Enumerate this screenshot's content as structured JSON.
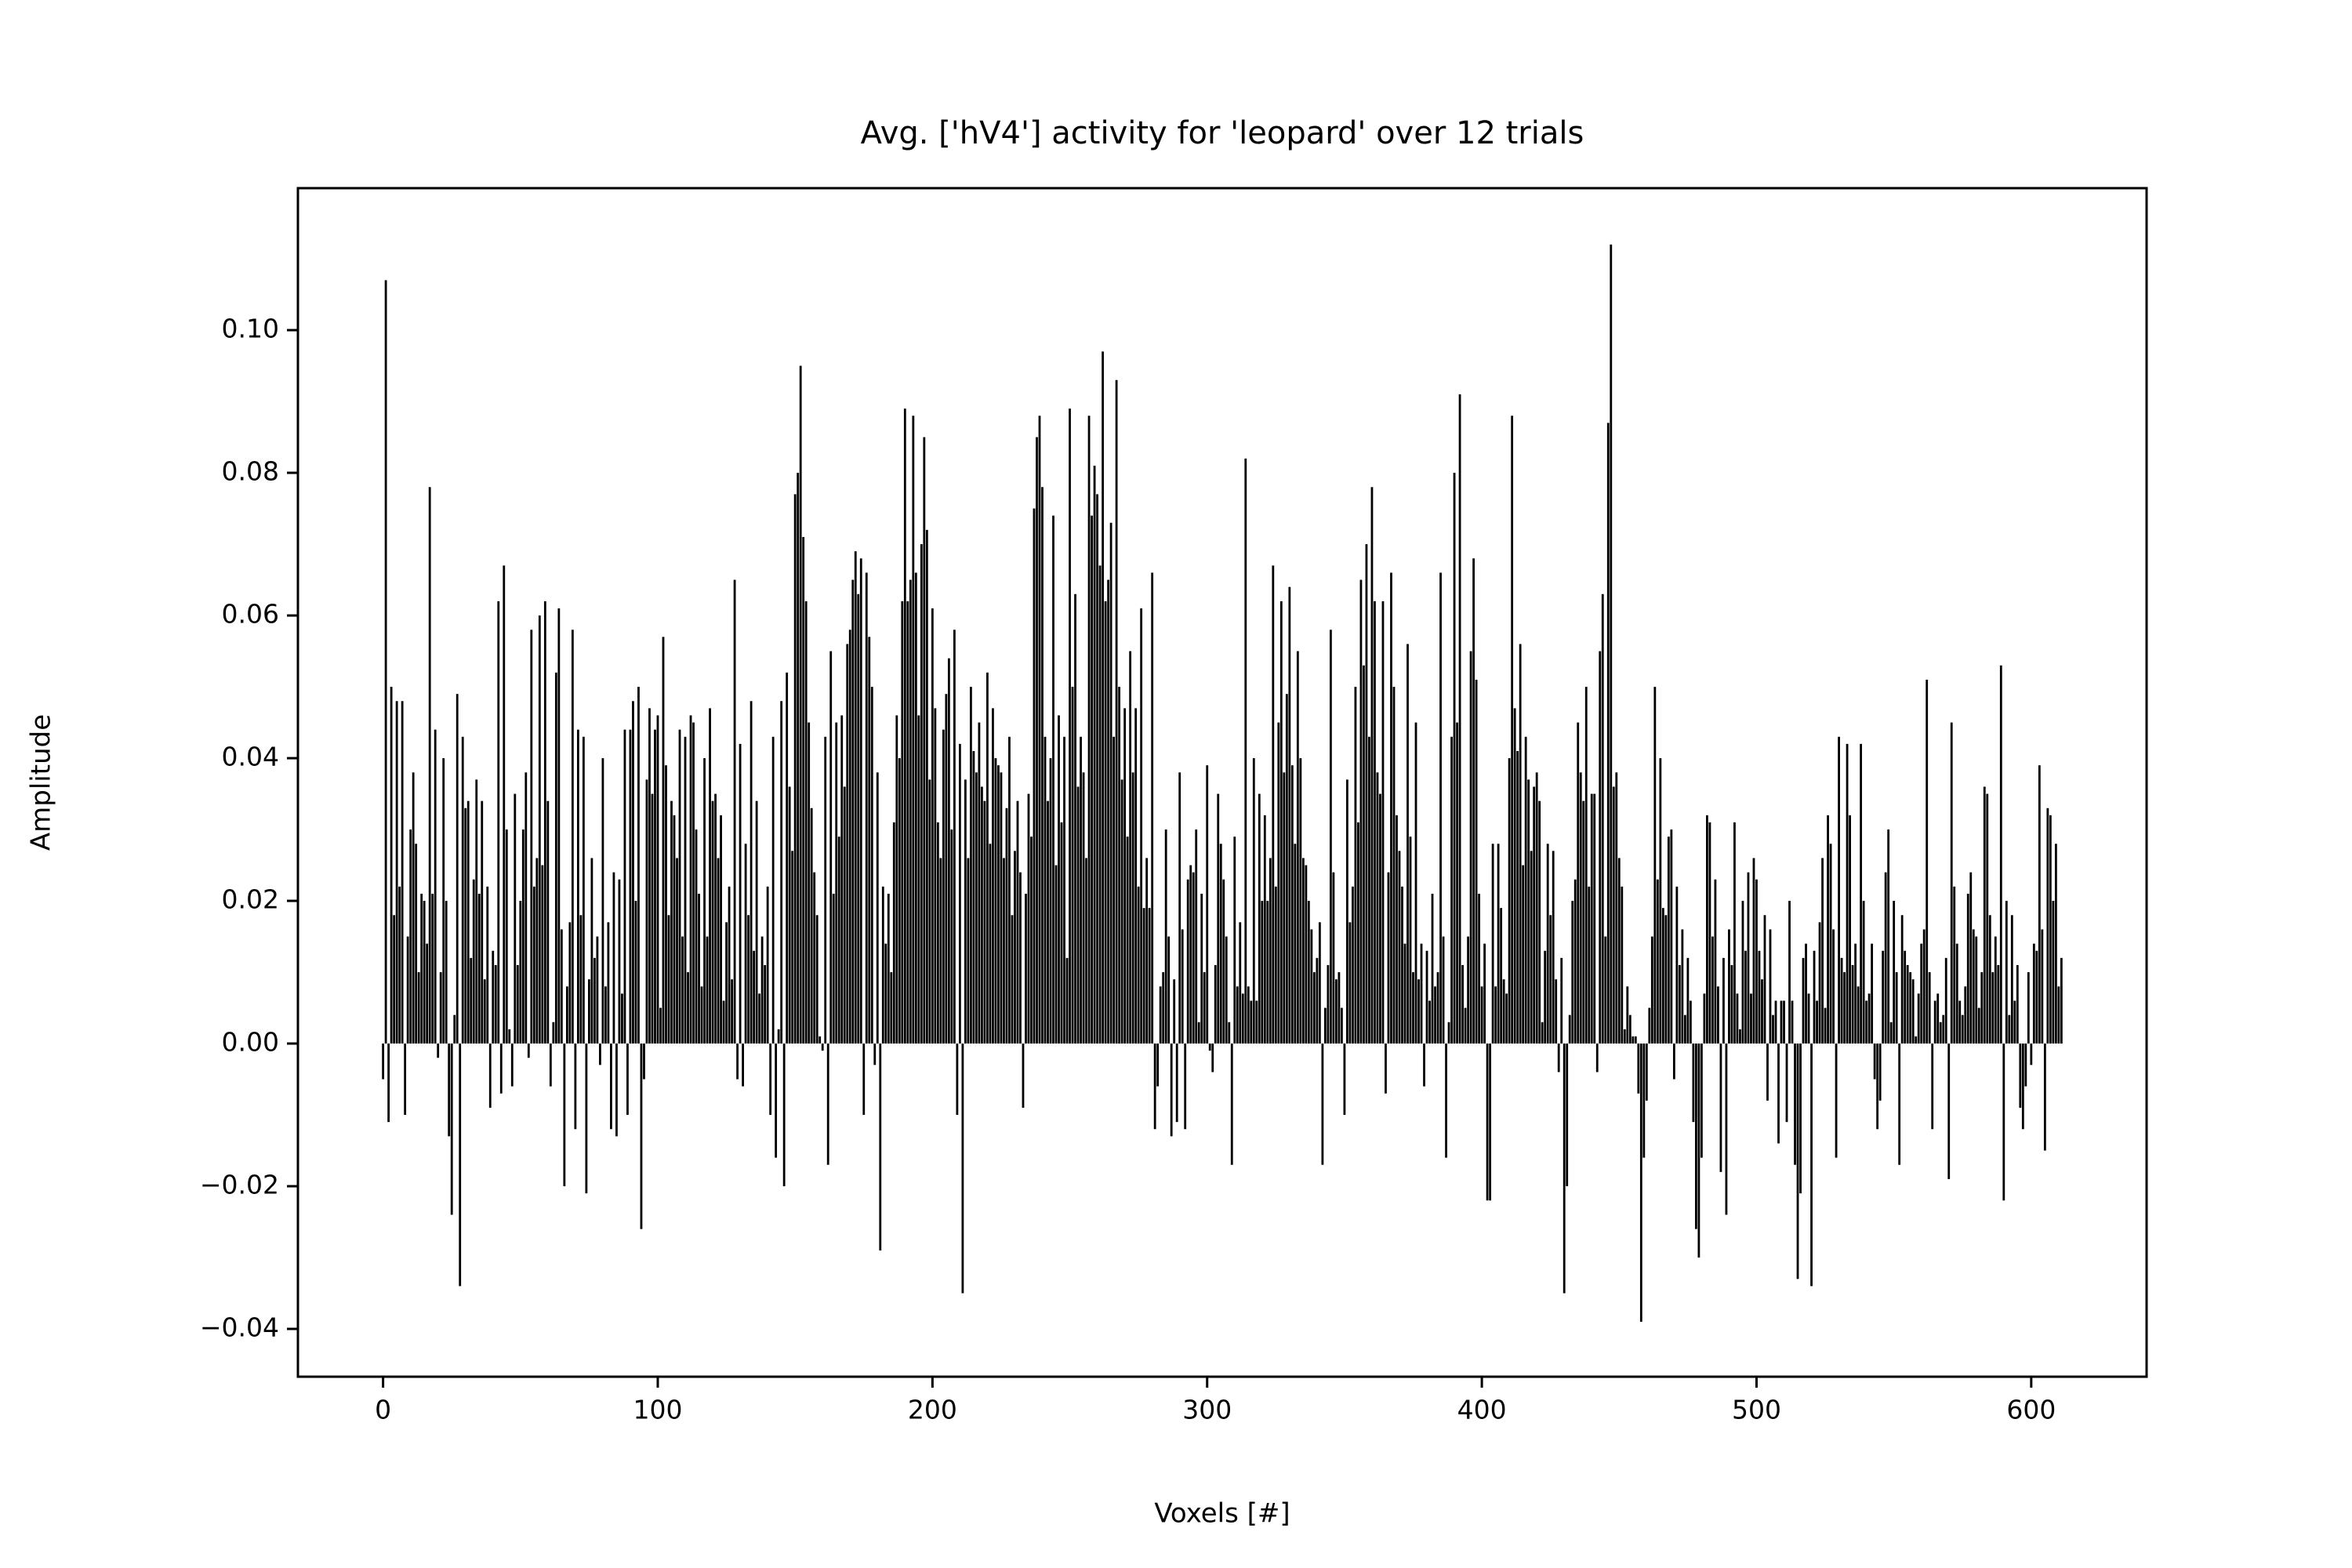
{
  "chart_data": {
    "type": "bar",
    "title": "Avg. ['hV4'] activity for 'leopard' over 12 trials",
    "xlabel": "Voxels [#]",
    "ylabel": "Amplitude",
    "color": "#000000",
    "bar_width": 0.8,
    "xlim": [
      -31,
      642
    ],
    "ylim": [
      -0.0467,
      0.1199
    ],
    "xticks": [
      0,
      100,
      200,
      300,
      400,
      500,
      600
    ],
    "yticks": [
      {
        "value": -0.04,
        "label": "−0.04"
      },
      {
        "value": -0.02,
        "label": "−0.02"
      },
      {
        "value": 0,
        "label": "0.00"
      },
      {
        "value": 0.02,
        "label": "0.02"
      },
      {
        "value": 0.04,
        "label": "0.04"
      },
      {
        "value": 0.06,
        "label": "0.06"
      },
      {
        "value": 0.08,
        "label": "0.08"
      },
      {
        "value": 0.1,
        "label": "0.10"
      }
    ],
    "grid": false,
    "x": [
      0,
      1,
      2,
      3,
      4,
      5,
      6,
      7,
      8,
      9,
      10,
      11,
      12,
      13,
      14,
      15,
      16,
      17,
      18,
      19,
      20,
      21,
      22,
      23,
      24,
      25,
      26,
      27,
      28,
      29,
      30,
      31,
      32,
      33,
      34,
      35,
      36,
      37,
      38,
      39,
      40,
      41,
      42,
      43,
      44,
      45,
      46,
      47,
      48,
      49,
      50,
      51,
      52,
      53,
      54,
      55,
      56,
      57,
      58,
      59,
      60,
      61,
      62,
      63,
      64,
      65,
      66,
      67,
      68,
      69,
      70,
      71,
      72,
      73,
      74,
      75,
      76,
      77,
      78,
      79,
      80,
      81,
      82,
      83,
      84,
      85,
      86,
      87,
      88,
      89,
      90,
      91,
      92,
      93,
      94,
      95,
      96,
      97,
      98,
      99,
      100,
      101,
      102,
      103,
      104,
      105,
      106,
      107,
      108,
      109,
      110,
      111,
      112,
      113,
      114,
      115,
      116,
      117,
      118,
      119,
      120,
      121,
      122,
      123,
      124,
      125,
      126,
      127,
      128,
      129,
      130,
      131,
      132,
      133,
      134,
      135,
      136,
      137,
      138,
      139,
      140,
      141,
      142,
      143,
      144,
      145,
      146,
      147,
      148,
      149,
      150,
      151,
      152,
      153,
      154,
      155,
      156,
      157,
      158,
      159,
      160,
      161,
      162,
      163,
      164,
      165,
      166,
      167,
      168,
      169,
      170,
      171,
      172,
      173,
      174,
      175,
      176,
      177,
      178,
      179,
      180,
      181,
      182,
      183,
      184,
      185,
      186,
      187,
      188,
      189,
      190,
      191,
      192,
      193,
      194,
      195,
      196,
      197,
      198,
      199,
      200,
      201,
      202,
      203,
      204,
      205,
      206,
      207,
      208,
      209,
      210,
      211,
      212,
      213,
      214,
      215,
      216,
      217,
      218,
      219,
      220,
      221,
      222,
      223,
      224,
      225,
      226,
      227,
      228,
      229,
      230,
      231,
      232,
      233,
      234,
      235,
      236,
      237,
      238,
      239,
      240,
      241,
      242,
      243,
      244,
      245,
      246,
      247,
      248,
      249,
      250,
      251,
      252,
      253,
      254,
      255,
      256,
      257,
      258,
      259,
      260,
      261,
      262,
      263,
      264,
      265,
      266,
      267,
      268,
      269,
      270,
      271,
      272,
      273,
      274,
      275,
      276,
      277,
      278,
      279,
      280,
      281,
      282,
      283,
      284,
      285,
      286,
      287,
      288,
      289,
      290,
      291,
      292,
      293,
      294,
      295,
      296,
      297,
      298,
      299,
      300,
      301,
      302,
      303,
      304,
      305,
      306,
      307,
      308,
      309,
      310,
      311,
      312,
      313,
      314,
      315,
      316,
      317,
      318,
      319,
      320,
      321,
      322,
      323,
      324,
      325,
      326,
      327,
      328,
      329,
      330,
      331,
      332,
      333,
      334,
      335,
      336,
      337,
      338,
      339,
      340,
      341,
      342,
      343,
      344,
      345,
      346,
      347,
      348,
      349,
      350,
      351,
      352,
      353,
      354,
      355,
      356,
      357,
      358,
      359,
      360,
      361,
      362,
      363,
      364,
      365,
      366,
      367,
      368,
      369,
      370,
      371,
      372,
      373,
      374,
      375,
      376,
      377,
      378,
      379,
      380,
      381,
      382,
      383,
      384,
      385,
      386,
      387,
      388,
      389,
      390,
      391,
      392,
      393,
      394,
      395,
      396,
      397,
      398,
      399,
      400,
      401,
      402,
      403,
      404,
      405,
      406,
      407,
      408,
      409,
      410,
      411,
      412,
      413,
      414,
      415,
      416,
      417,
      418,
      419,
      420,
      421,
      422,
      423,
      424,
      425,
      426,
      427,
      428,
      429,
      430,
      431,
      432,
      433,
      434,
      435,
      436,
      437,
      438,
      439,
      440,
      441,
      442,
      443,
      444,
      445,
      446,
      447,
      448,
      449,
      450,
      451,
      452,
      453,
      454,
      455,
      456,
      457,
      458,
      459,
      460,
      461,
      462,
      463,
      464,
      465,
      466,
      467,
      468,
      469,
      470,
      471,
      472,
      473,
      474,
      475,
      476,
      477,
      478,
      479,
      480,
      481,
      482,
      483,
      484,
      485,
      486,
      487,
      488,
      489,
      490,
      491,
      492,
      493,
      494,
      495,
      496,
      497,
      498,
      499,
      500,
      501,
      502,
      503,
      504,
      505,
      506,
      507,
      508,
      509,
      510,
      511,
      512,
      513,
      514,
      515,
      516,
      517,
      518,
      519,
      520,
      521,
      522,
      523,
      524,
      525,
      526,
      527,
      528,
      529,
      530,
      531,
      532,
      533,
      534,
      535,
      536,
      537,
      538,
      539,
      540,
      541,
      542,
      543,
      544,
      545,
      546,
      547,
      548,
      549,
      550,
      551,
      552,
      553,
      554,
      555,
      556,
      557,
      558,
      559,
      560,
      561,
      562,
      563,
      564,
      565,
      566,
      567,
      568,
      569,
      570,
      571,
      572,
      573,
      574,
      575,
      576,
      577,
      578,
      579,
      580,
      581,
      582,
      583,
      584,
      585,
      586,
      587,
      588,
      589,
      590,
      591,
      592,
      593,
      594,
      595,
      596,
      597,
      598,
      599,
      600,
      601,
      602,
      603,
      604,
      605,
      606,
      607,
      608,
      609,
      610,
      611
    ],
    "values": [
      -0.005,
      0.107,
      -0.011,
      0.05,
      0.018,
      0.048,
      0.022,
      0.048,
      -0.01,
      0.015,
      0.03,
      0.038,
      0.028,
      0.01,
      0.021,
      0.02,
      0.014,
      0.078,
      0.021,
      0.044,
      -0.002,
      0.01,
      0.04,
      0.02,
      -0.013,
      -0.024,
      0.004,
      0.049,
      -0.034,
      0.043,
      0.033,
      0.034,
      0.012,
      0.023,
      0.037,
      0.021,
      0.034,
      0.009,
      0.022,
      -0.009,
      0.013,
      0.011,
      0.062,
      -0.007,
      0.067,
      0.03,
      0.002,
      -0.006,
      0.035,
      0.011,
      0.02,
      0.03,
      0.038,
      -0.002,
      0.058,
      0.022,
      0.026,
      0.06,
      0.025,
      0.062,
      0.034,
      -0.006,
      0.003,
      0.052,
      0.061,
      0.016,
      -0.02,
      0.008,
      0.017,
      0.058,
      -0.012,
      0.044,
      0.018,
      0.043,
      -0.021,
      0.009,
      0.026,
      0.012,
      0.015,
      -0.003,
      0.04,
      0.008,
      0.017,
      -0.012,
      0.024,
      -0.013,
      0.023,
      0.007,
      0.044,
      -0.01,
      0.044,
      0.048,
      0.02,
      0.05,
      -0.026,
      -0.005,
      0.037,
      0.047,
      0.035,
      0.044,
      0.046,
      0.005,
      0.057,
      0.039,
      0.018,
      0.034,
      0.032,
      0.026,
      0.044,
      0.015,
      0.043,
      0.01,
      0.046,
      0.045,
      0.03,
      0.021,
      0.008,
      0.04,
      0.015,
      0.047,
      0.034,
      0.035,
      0.026,
      0.032,
      0.006,
      0.017,
      0.022,
      0.009,
      0.065,
      -0.005,
      0.042,
      -0.006,
      0.028,
      0.018,
      0.048,
      0.013,
      0.034,
      0.007,
      0.015,
      0.011,
      0.022,
      -0.01,
      0.043,
      -0.016,
      0.002,
      0.048,
      -0.02,
      0.052,
      0.036,
      0.027,
      0.077,
      0.08,
      0.095,
      0.071,
      0.062,
      0.045,
      0.033,
      0.024,
      0.018,
      0.001,
      -0.001,
      0.043,
      -0.017,
      0.055,
      0.021,
      0.045,
      0.029,
      0.046,
      0.036,
      0.056,
      0.058,
      0.065,
      0.069,
      0.063,
      0.068,
      -0.01,
      0.066,
      0.057,
      0.05,
      -0.003,
      0.038,
      -0.029,
      0.022,
      0.014,
      0.021,
      0.01,
      0.031,
      0.046,
      0.04,
      0.062,
      0.089,
      0.062,
      0.065,
      0.088,
      0.066,
      0.046,
      0.07,
      0.085,
      0.072,
      0.037,
      0.061,
      0.047,
      0.031,
      0.026,
      0.044,
      0.049,
      0.054,
      0.03,
      0.058,
      -0.01,
      0.042,
      -0.035,
      0.037,
      0.026,
      0.05,
      0.041,
      0.038,
      0.045,
      0.036,
      0.034,
      0.052,
      0.028,
      0.047,
      0.04,
      0.039,
      0.038,
      0.026,
      0.033,
      0.043,
      0.018,
      0.027,
      0.034,
      0.024,
      -0.009,
      0.021,
      0.035,
      0.029,
      0.075,
      0.085,
      0.088,
      0.078,
      0.043,
      0.034,
      0.04,
      0.074,
      0.025,
      0.046,
      0.031,
      0.043,
      0.012,
      0.089,
      0.05,
      0.063,
      0.036,
      0.043,
      0.038,
      0.026,
      0.088,
      0.074,
      0.081,
      0.077,
      0.067,
      0.097,
      0.062,
      0.065,
      0.073,
      0.043,
      0.093,
      0.05,
      0.037,
      0.047,
      0.029,
      0.055,
      0.038,
      0.047,
      0.022,
      0.061,
      0.019,
      0.026,
      0.019,
      0.066,
      -0.012,
      -0.006,
      0.008,
      0.01,
      0.03,
      0.015,
      -0.013,
      0.009,
      -0.011,
      0.038,
      0.016,
      -0.012,
      0.023,
      0.025,
      0.024,
      0.03,
      0.003,
      0.021,
      0.01,
      0.039,
      -0.001,
      -0.004,
      0.011,
      0.035,
      0.028,
      0.023,
      0.015,
      0.003,
      -0.017,
      0.029,
      0.008,
      0.017,
      0.007,
      0.082,
      0.008,
      0.006,
      0.04,
      0.006,
      0.035,
      0.02,
      0.032,
      0.02,
      0.026,
      0.067,
      0.022,
      0.045,
      0.062,
      0.038,
      0.049,
      0.064,
      0.039,
      0.028,
      0.055,
      0.04,
      0.026,
      0.025,
      0.02,
      0.016,
      0.01,
      0.012,
      0.017,
      -0.017,
      0.005,
      0.011,
      0.058,
      0.024,
      0.009,
      0.01,
      0.005,
      -0.01,
      0.037,
      0.017,
      0.022,
      0.05,
      0.031,
      0.065,
      0.053,
      0.07,
      0.043,
      0.078,
      0.062,
      0.038,
      0.035,
      0.062,
      -0.007,
      0.024,
      0.066,
      0.05,
      0.032,
      0.027,
      0.022,
      0.014,
      0.056,
      0.029,
      0.01,
      0.045,
      0.009,
      0.014,
      -0.006,
      0.013,
      0.006,
      0.021,
      0.008,
      0.01,
      0.066,
      0.015,
      -0.016,
      0.003,
      0.043,
      0.08,
      0.045,
      0.091,
      0.011,
      0.005,
      0.015,
      0.055,
      0.068,
      0.051,
      0.021,
      0.008,
      0.014,
      -0.022,
      -0.022,
      0.028,
      0.008,
      0.028,
      0.019,
      0.009,
      0.007,
      0.04,
      0.088,
      0.047,
      0.041,
      0.056,
      0.025,
      0.043,
      0.037,
      0.027,
      0.036,
      0.038,
      0.034,
      0.003,
      0.013,
      0.028,
      0.018,
      0.027,
      0.009,
      -0.004,
      0.012,
      -0.035,
      -0.02,
      0.004,
      0.02,
      0.023,
      0.045,
      0.038,
      0.034,
      0.05,
      0.022,
      0.035,
      0.035,
      -0.004,
      0.055,
      0.063,
      0.015,
      0.087,
      0.112,
      0.036,
      0.038,
      0.026,
      0.022,
      0.002,
      0.008,
      0.004,
      0.001,
      0.001,
      -0.007,
      -0.039,
      -0.016,
      -0.008,
      0.005,
      0.015,
      0.05,
      0.023,
      0.04,
      0.019,
      0.018,
      0.029,
      0.03,
      -0.005,
      0.022,
      0.011,
      0.016,
      0.004,
      0.012,
      0.006,
      -0.011,
      -0.026,
      -0.03,
      -0.016,
      0.007,
      0.032,
      0.031,
      0.015,
      0.023,
      0.008,
      -0.018,
      0.012,
      -0.024,
      0.016,
      0.011,
      0.031,
      0.007,
      0.002,
      0.02,
      0.013,
      0.024,
      0.007,
      0.026,
      0.023,
      0.013,
      0.009,
      0.018,
      -0.008,
      0.016,
      0.004,
      0.006,
      -0.014,
      0.006,
      0.006,
      -0.011,
      0.02,
      0.006,
      -0.017,
      -0.033,
      -0.021,
      0.012,
      0.014,
      0.007,
      -0.034,
      0.013,
      0.006,
      0.017,
      0.026,
      0.005,
      0.032,
      0.028,
      0.016,
      -0.016,
      0.043,
      0.012,
      0.01,
      0.042,
      0.032,
      0.011,
      0.014,
      0.008,
      0.042,
      0.02,
      0.006,
      0.007,
      0.014,
      -0.005,
      -0.012,
      -0.008,
      0.013,
      0.024,
      0.03,
      0.003,
      0.02,
      0.01,
      -0.017,
      0.018,
      0.013,
      0.011,
      0.01,
      0.009,
      0.001,
      0.007,
      0.014,
      0.016,
      0.051,
      0.01,
      -0.012,
      0.006,
      0.007,
      0.003,
      0.004,
      0.012,
      -0.019,
      0.045,
      0.022,
      0.014,
      0.006,
      0.004,
      0.008,
      0.021,
      0.024,
      0.016,
      0.015,
      0.005,
      0.01,
      0.036,
      0.035,
      0.018,
      0.01,
      0.015,
      0.011,
      0.053,
      -0.022,
      0.02,
      0.004,
      0.018,
      0.006,
      0.011,
      -0.009,
      -0.012,
      -0.006,
      0.01,
      -0.003,
      0.014,
      0.013,
      0.039,
      0.016,
      -0.015,
      0.033,
      0.032,
      0.02,
      0.028,
      0.008,
      0.012
    ]
  }
}
